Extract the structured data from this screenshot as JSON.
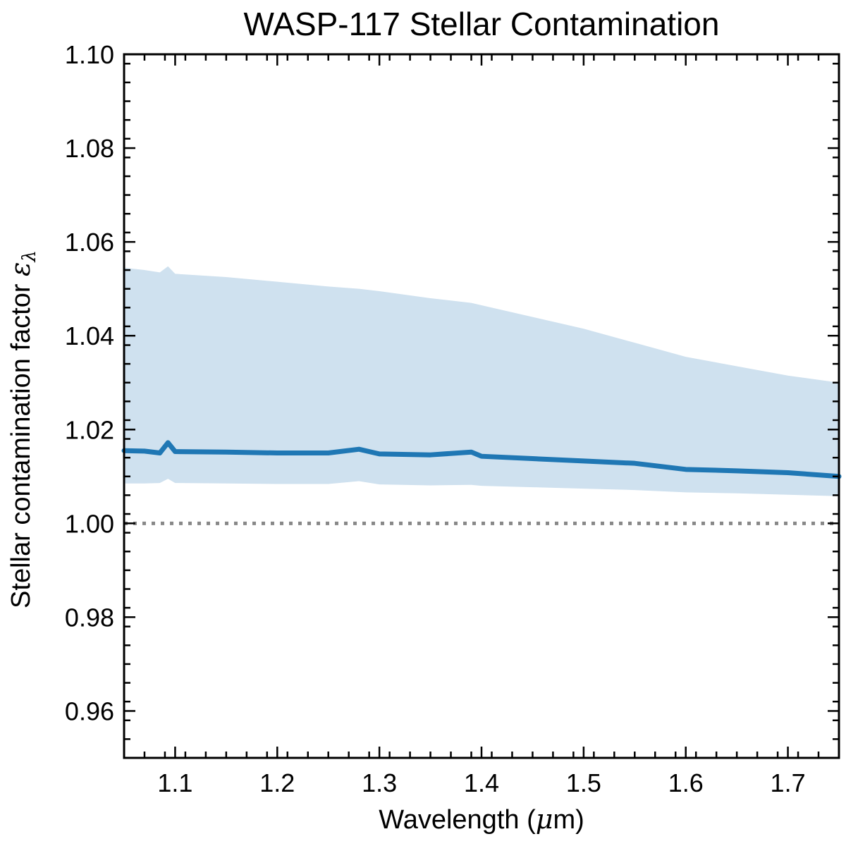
{
  "chart_data": {
    "type": "line",
    "title": "WASP-117 Stellar Contamination",
    "xlabel": {
      "text": "Wavelength (",
      "symbol": "μ",
      "unit": "m)"
    },
    "ylabel": {
      "text": "Stellar contamination factor ",
      "symbol": "ε",
      "subscript": "λ"
    },
    "xlim": [
      1.05,
      1.75
    ],
    "ylim": [
      0.95,
      1.1
    ],
    "x_ticks": [
      {
        "value": 1.1,
        "label": "1.1"
      },
      {
        "value": 1.2,
        "label": "1.2"
      },
      {
        "value": 1.3,
        "label": "1.3"
      },
      {
        "value": 1.4,
        "label": "1.4"
      },
      {
        "value": 1.5,
        "label": "1.5"
      },
      {
        "value": 1.6,
        "label": "1.6"
      },
      {
        "value": 1.7,
        "label": "1.7"
      }
    ],
    "y_ticks": [
      {
        "value": 0.96,
        "label": "0.96"
      },
      {
        "value": 0.98,
        "label": "0.98"
      },
      {
        "value": 1.0,
        "label": "1.00"
      },
      {
        "value": 1.02,
        "label": "1.02"
      },
      {
        "value": 1.04,
        "label": "1.04"
      },
      {
        "value": 1.06,
        "label": "1.06"
      },
      {
        "value": 1.08,
        "label": "1.08"
      },
      {
        "value": 1.1,
        "label": "1.10"
      }
    ],
    "x_minor_step": 0.02,
    "y_minor_step": 0.004,
    "reference_line": {
      "y": 1.0,
      "style": "dotted",
      "color": "#888888"
    },
    "series": [
      {
        "name": "Stellar contamination factor",
        "color": "#1f77b4",
        "band_color": "#cfe1ef",
        "points": [
          {
            "x": 1.05,
            "y": 1.0155,
            "lower": 1.0085,
            "upper": 1.0545
          },
          {
            "x": 1.07,
            "y": 1.0154,
            "lower": 1.0085,
            "upper": 1.054
          },
          {
            "x": 1.085,
            "y": 1.015,
            "lower": 1.0086,
            "upper": 1.0535
          },
          {
            "x": 1.093,
            "y": 1.0172,
            "lower": 1.0095,
            "upper": 1.0548
          },
          {
            "x": 1.1,
            "y": 1.0153,
            "lower": 1.0086,
            "upper": 1.0532
          },
          {
            "x": 1.15,
            "y": 1.0152,
            "lower": 1.0085,
            "upper": 1.0525
          },
          {
            "x": 1.2,
            "y": 1.015,
            "lower": 1.0084,
            "upper": 1.0515
          },
          {
            "x": 1.25,
            "y": 1.015,
            "lower": 1.0084,
            "upper": 1.0505
          },
          {
            "x": 1.28,
            "y": 1.0158,
            "lower": 1.009,
            "upper": 1.05
          },
          {
            "x": 1.3,
            "y": 1.0148,
            "lower": 1.0083,
            "upper": 1.0495
          },
          {
            "x": 1.35,
            "y": 1.0146,
            "lower": 1.0081,
            "upper": 1.048
          },
          {
            "x": 1.39,
            "y": 1.0152,
            "lower": 1.0082,
            "upper": 1.047
          },
          {
            "x": 1.4,
            "y": 1.0143,
            "lower": 1.008,
            "upper": 1.0465
          },
          {
            "x": 1.45,
            "y": 1.0138,
            "lower": 1.0077,
            "upper": 1.044
          },
          {
            "x": 1.5,
            "y": 1.0133,
            "lower": 1.0074,
            "upper": 1.0415
          },
          {
            "x": 1.55,
            "y": 1.0128,
            "lower": 1.0071,
            "upper": 1.0385
          },
          {
            "x": 1.6,
            "y": 1.0115,
            "lower": 1.0066,
            "upper": 1.0355
          },
          {
            "x": 1.65,
            "y": 1.0112,
            "lower": 1.0064,
            "upper": 1.0335
          },
          {
            "x": 1.7,
            "y": 1.0108,
            "lower": 1.0061,
            "upper": 1.0315
          },
          {
            "x": 1.75,
            "y": 1.01,
            "lower": 1.0058,
            "upper": 1.03
          }
        ]
      }
    ]
  }
}
